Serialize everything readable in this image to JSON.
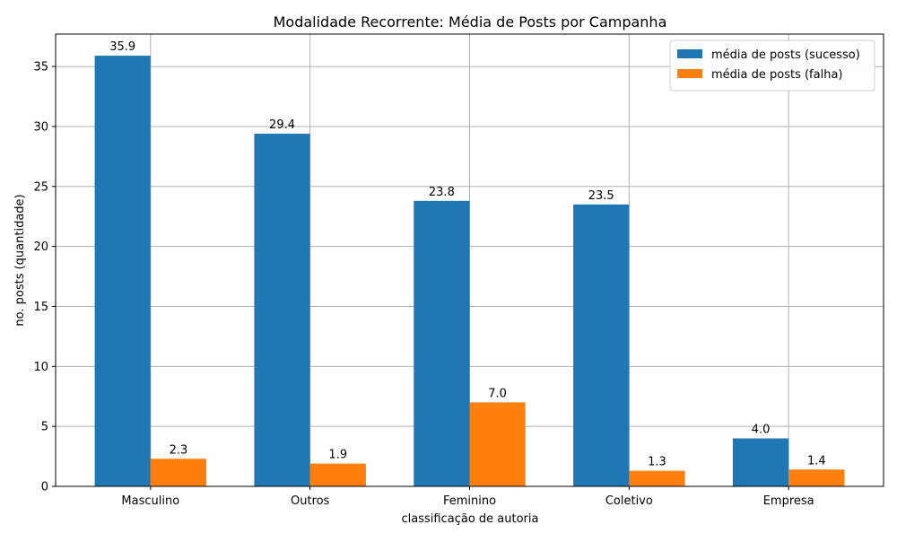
{
  "chart_data": {
    "type": "bar",
    "title": "Modalidade Recorrente: Média de Posts por Campanha",
    "xlabel": "classificação de autoria",
    "ylabel": "no. posts (quantidade)",
    "categories": [
      "Masculino",
      "Outros",
      "Feminino",
      "Coletivo",
      "Empresa"
    ],
    "series": [
      {
        "name": "média de posts (sucesso)",
        "color": "#1f77b4",
        "values": [
          35.9,
          29.4,
          23.8,
          23.5,
          4.0
        ]
      },
      {
        "name": "média de posts (falha)",
        "color": "#ff7f0e",
        "values": [
          2.3,
          1.9,
          7.0,
          1.3,
          1.4
        ]
      }
    ],
    "ylim": [
      0,
      37.7
    ],
    "yticks": [
      0,
      5,
      10,
      15,
      20,
      25,
      30,
      35
    ],
    "grid": true,
    "legend_position": "top-right",
    "data_label_format": "one-decimal"
  }
}
